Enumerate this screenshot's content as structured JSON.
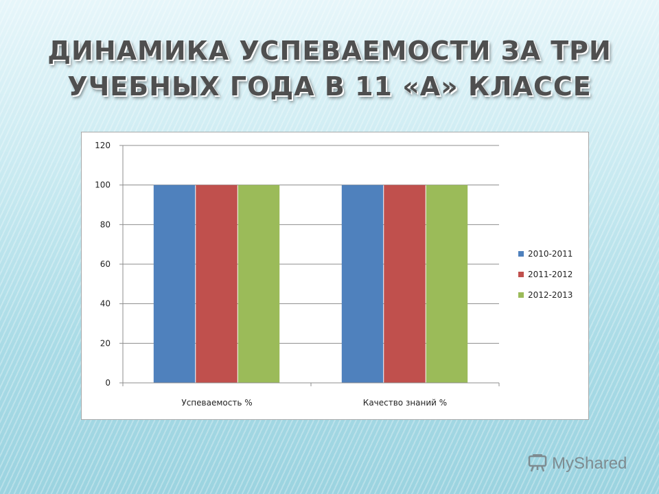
{
  "slide": {
    "title_line1": "ДИНАМИКА  УСПЕВАЕМОСТИ  ЗА ТРИ",
    "title_line2": "УЧЕБНЫХ ГОДА  В 11 «А» КЛАССЕ"
  },
  "watermark": {
    "text": "MyShared",
    "icon": "presentation-board-icon"
  },
  "chart_data": {
    "type": "bar",
    "title": "",
    "xlabel": "",
    "ylabel": "",
    "ylim": [
      0,
      120
    ],
    "yticks": [
      0,
      20,
      40,
      60,
      80,
      100,
      120
    ],
    "grid": true,
    "legend_position": "right",
    "categories": [
      "Успеваемость %",
      "Качество знаний %"
    ],
    "series": [
      {
        "name": "2010-2011",
        "color": "#4f81bd",
        "values": [
          100,
          100
        ]
      },
      {
        "name": "2011-2012",
        "color": "#c0504d",
        "values": [
          100,
          100
        ]
      },
      {
        "name": "2012-2013",
        "color": "#9bbb59",
        "values": [
          100,
          100
        ]
      }
    ]
  }
}
